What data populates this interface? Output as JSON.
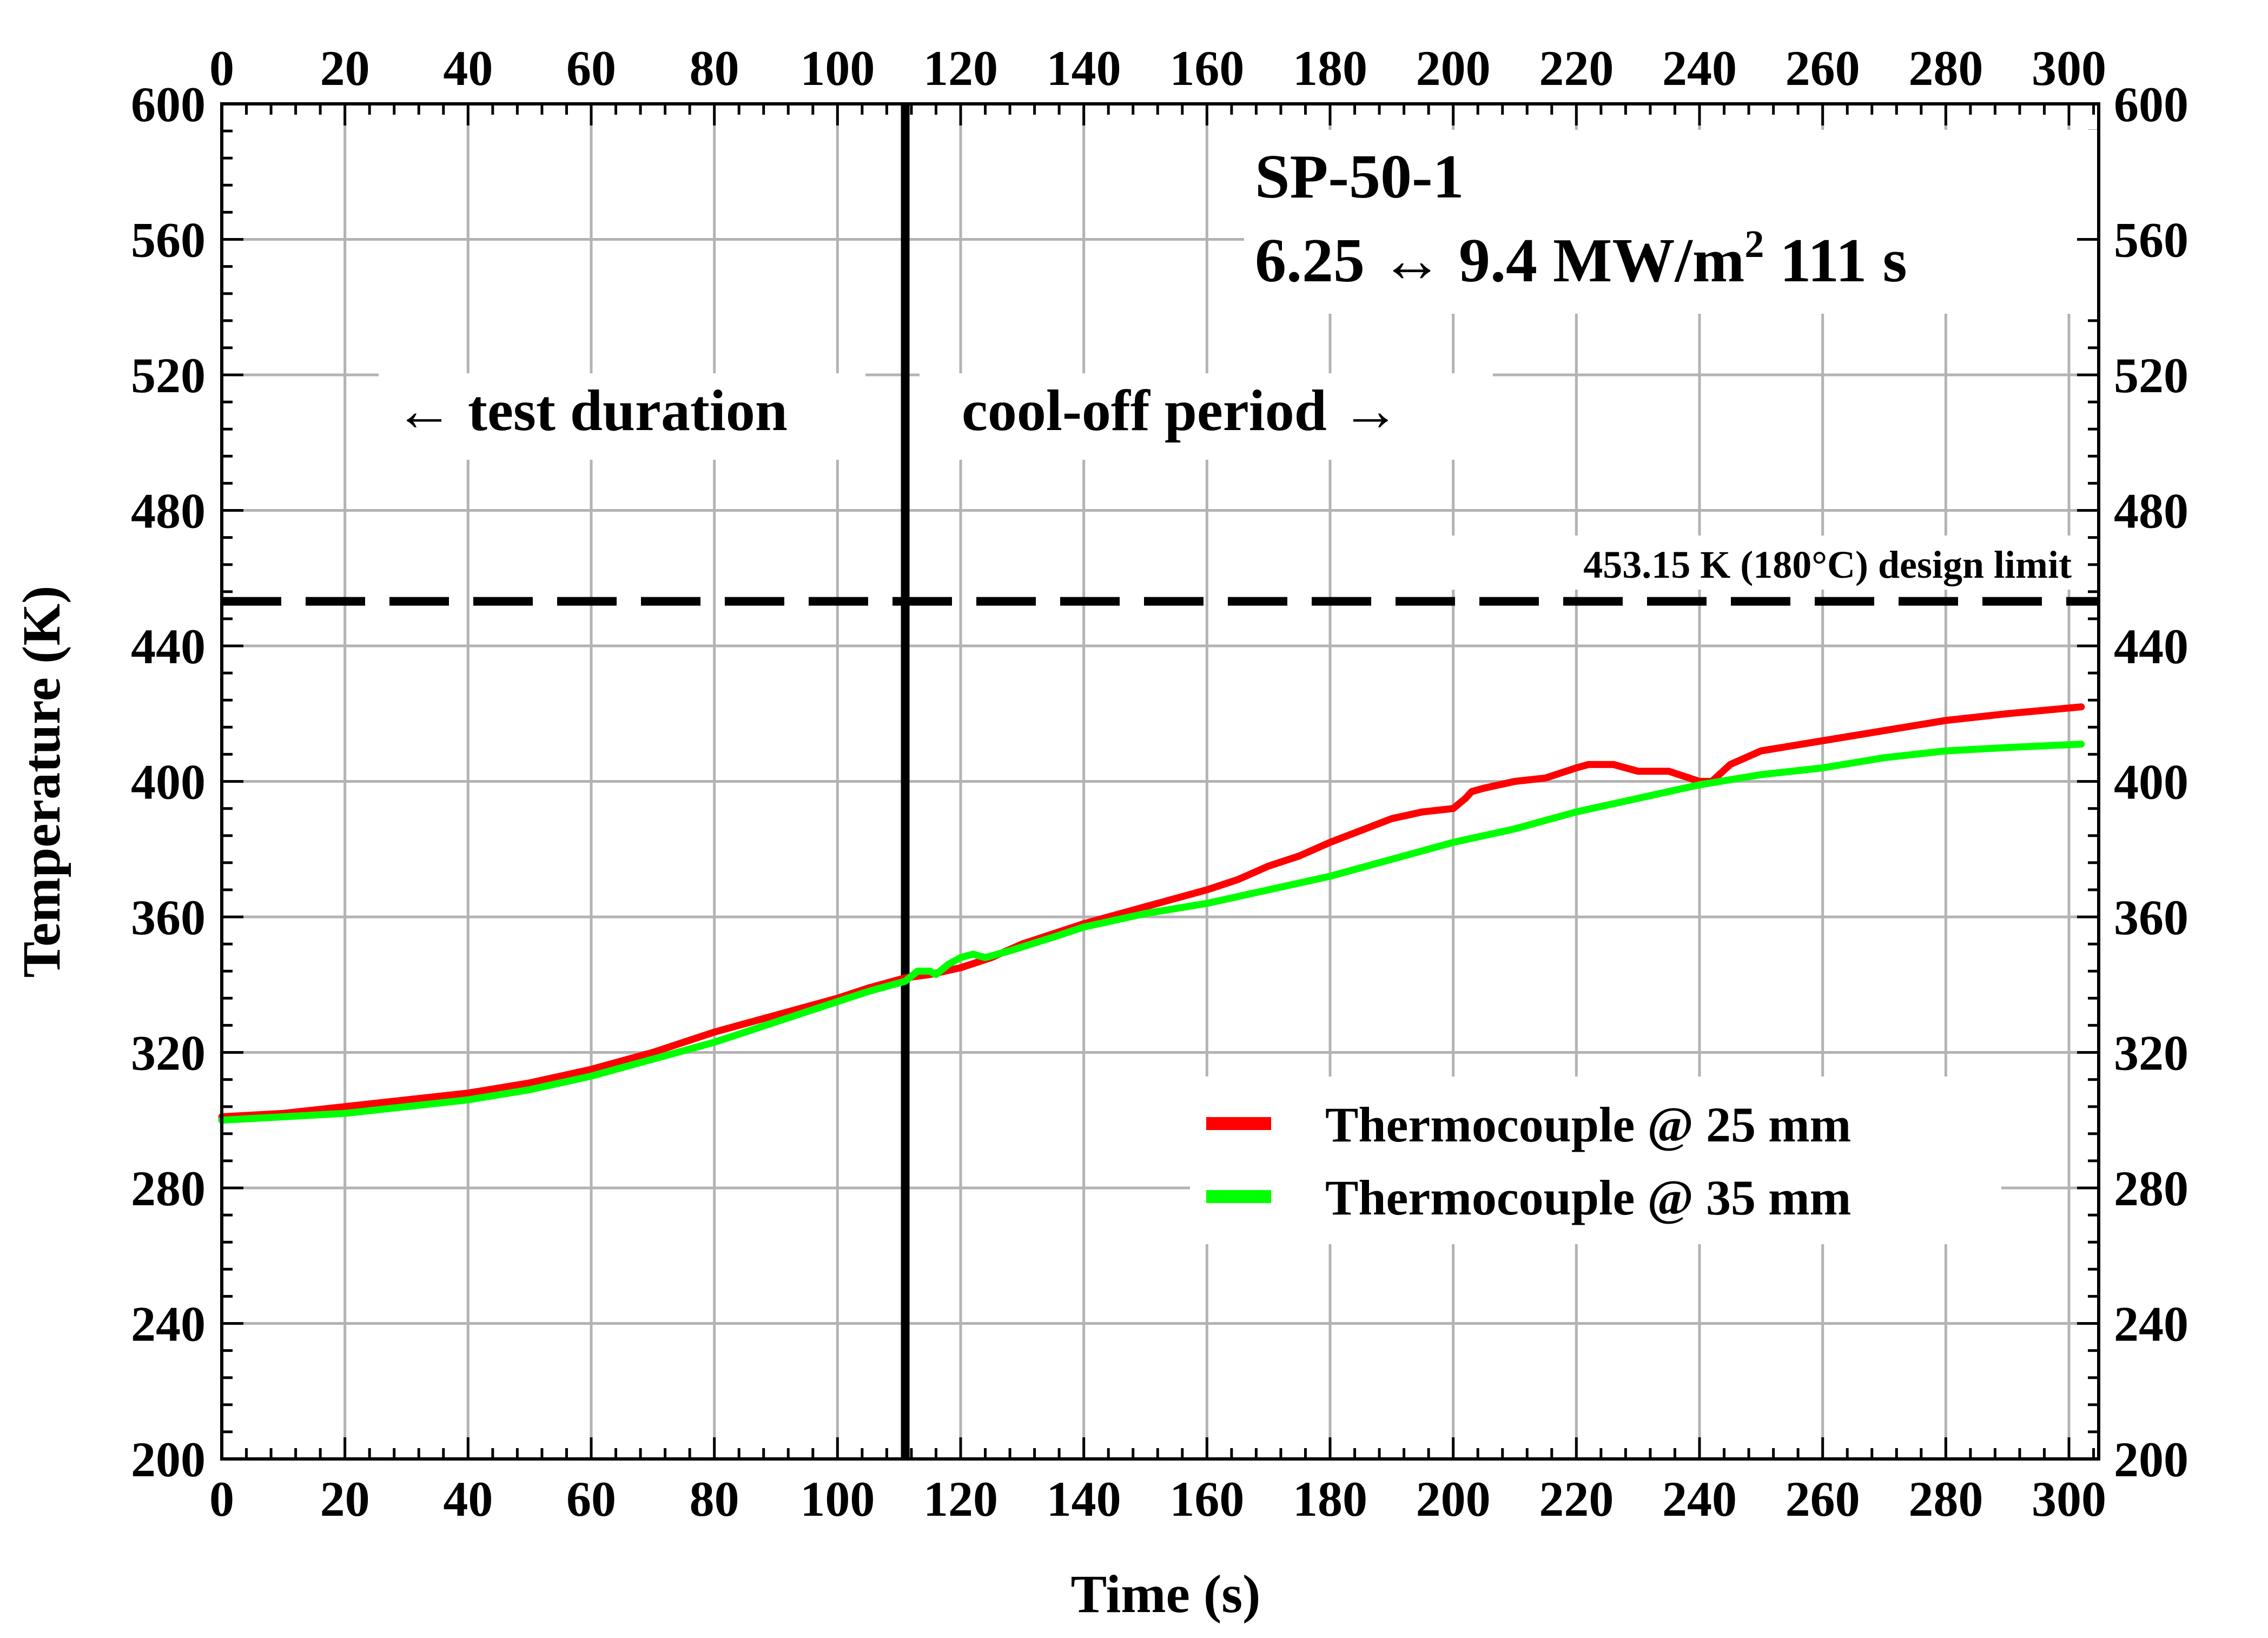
{
  "chart_data": {
    "type": "line",
    "title": "SP-50-1",
    "subtitle": "6.25 ↔ 9.4 MW/m",
    "subtitle_superscript": "2",
    "subtitle_tail": " 111 s",
    "xlabel": "Time (s)",
    "ylabel": "Temperature (K)",
    "xlim": [
      0,
      305
    ],
    "ylim": [
      200,
      600
    ],
    "x_ticks": [
      0,
      20,
      40,
      60,
      80,
      100,
      120,
      140,
      160,
      180,
      200,
      220,
      240,
      260,
      280,
      300
    ],
    "y_ticks": [
      200,
      240,
      280,
      320,
      360,
      400,
      440,
      480,
      520,
      560,
      600
    ],
    "grid": true,
    "axes_mirrored": "top and right",
    "legend_position": "bottom-right",
    "series": [
      {
        "name": "Thermocouple @ 25 mm",
        "color": "#ff0000",
        "x": [
          0,
          10,
          20,
          30,
          40,
          50,
          60,
          70,
          80,
          90,
          100,
          105,
          111,
          115,
          120,
          125,
          130,
          140,
          150,
          160,
          165,
          170,
          175,
          180,
          190,
          195,
          200,
          202,
          203,
          205,
          210,
          215,
          220,
          222,
          226,
          230,
          235,
          240,
          242,
          245,
          250,
          260,
          270,
          280,
          290,
          302
        ],
        "y": [
          301,
          302,
          304,
          306,
          308,
          311,
          315,
          320,
          326,
          331,
          336,
          339,
          342,
          343,
          345,
          348,
          352,
          358,
          363,
          368,
          371,
          375,
          378,
          382,
          389,
          391,
          392,
          395,
          397,
          398,
          400,
          401,
          404,
          405,
          405,
          403,
          403,
          400,
          400,
          405,
          409,
          412,
          415,
          418,
          420,
          422
        ]
      },
      {
        "name": "Thermocouple @ 35 mm",
        "color": "#00ff00",
        "x": [
          0,
          10,
          20,
          30,
          40,
          50,
          60,
          70,
          80,
          90,
          100,
          105,
          111,
          113,
          115,
          116,
          118,
          120,
          122,
          124,
          128,
          135,
          140,
          150,
          160,
          170,
          180,
          190,
          200,
          210,
          220,
          230,
          240,
          250,
          260,
          270,
          280,
          290,
          302
        ],
        "y": [
          300,
          301,
          302,
          304,
          306,
          309,
          313,
          318,
          323,
          329,
          335,
          338,
          341,
          344,
          344,
          343,
          346,
          348,
          349,
          348,
          350,
          354,
          357,
          361,
          364,
          368,
          372,
          377,
          382,
          386,
          391,
          395,
          399,
          402,
          404,
          407,
          409,
          410,
          411
        ]
      }
    ],
    "reference_lines": [
      {
        "orientation": "horizontal",
        "value": 453.15,
        "style": "dashed",
        "label": "453.15 K (180°C) design limit"
      },
      {
        "orientation": "vertical",
        "value": 111,
        "style": "solid",
        "label": ""
      }
    ],
    "annotations": {
      "left": "← test duration",
      "right": "cool-off period →"
    }
  }
}
